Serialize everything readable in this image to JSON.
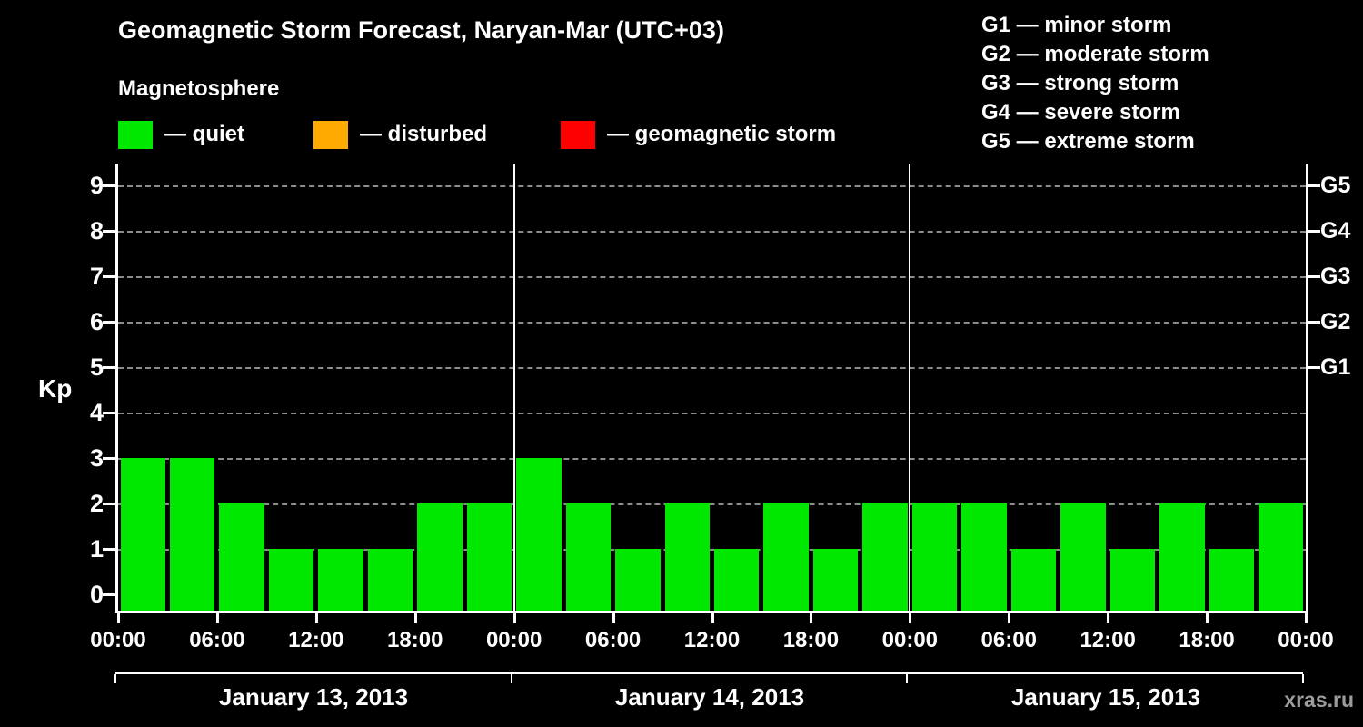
{
  "page": {
    "title": "Geomagnetic Storm Forecast, Naryan-Mar (UTC+03)",
    "subtitle": "Magnetosphere",
    "watermark": "xras.ru"
  },
  "legend": {
    "items": [
      {
        "label": "— quiet",
        "color": "#00e800"
      },
      {
        "label": "— disturbed",
        "color": "#ffaa00"
      },
      {
        "label": "— geomagnetic storm",
        "color": "#ff0000"
      }
    ]
  },
  "g_scale_legend": {
    "items": [
      "G1 — minor storm",
      "G2 — moderate storm",
      "G3 — strong storm",
      "G4 — severe storm",
      "G5 — extreme storm"
    ]
  },
  "chart_data": {
    "type": "bar",
    "title": "Geomagnetic Storm Forecast, Naryan-Mar (UTC+03)",
    "ylabel": "Kp",
    "ylim": [
      0,
      9
    ],
    "yticks": [
      0,
      1,
      2,
      3,
      4,
      5,
      6,
      7,
      8,
      9
    ],
    "grid": "horizontal-dashed",
    "bar_color": "#00e800",
    "bin_hours": 3,
    "right_axis": [
      {
        "label": "G5",
        "kp": 9
      },
      {
        "label": "G4",
        "kp": 8
      },
      {
        "label": "G3",
        "kp": 7
      },
      {
        "label": "G2",
        "kp": 6
      },
      {
        "label": "G1",
        "kp": 5
      }
    ],
    "x_tick_labels": [
      "00:00",
      "06:00",
      "12:00",
      "18:00",
      "00:00",
      "06:00",
      "12:00",
      "18:00",
      "00:00",
      "06:00",
      "12:00",
      "18:00",
      "00:00"
    ],
    "days": [
      {
        "date": "January 13, 2013",
        "values": [
          3,
          3,
          2,
          1,
          1,
          1,
          2,
          2
        ]
      },
      {
        "date": "January 14, 2013",
        "values": [
          3,
          2,
          1,
          2,
          1,
          2,
          1,
          2
        ]
      },
      {
        "date": "January 15, 2013",
        "values": [
          2,
          2,
          1,
          2,
          1,
          2,
          1,
          2
        ]
      }
    ]
  }
}
